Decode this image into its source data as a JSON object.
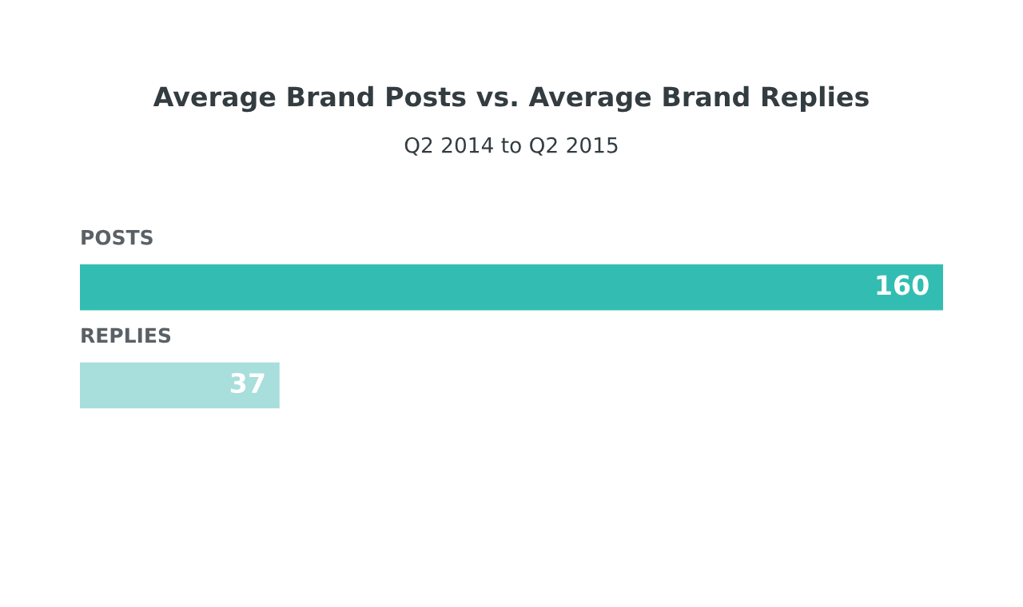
{
  "chart_data": {
    "type": "bar",
    "orientation": "horizontal",
    "title": "Average Brand Posts vs. Average Brand Replies",
    "subtitle": "Q2 2014 to Q2 2015",
    "categories": [
      "POSTS",
      "REPLIES"
    ],
    "values": [
      160,
      37
    ],
    "colors": [
      "#33bdb2",
      "#a8dedb"
    ],
    "data_labels": true
  }
}
